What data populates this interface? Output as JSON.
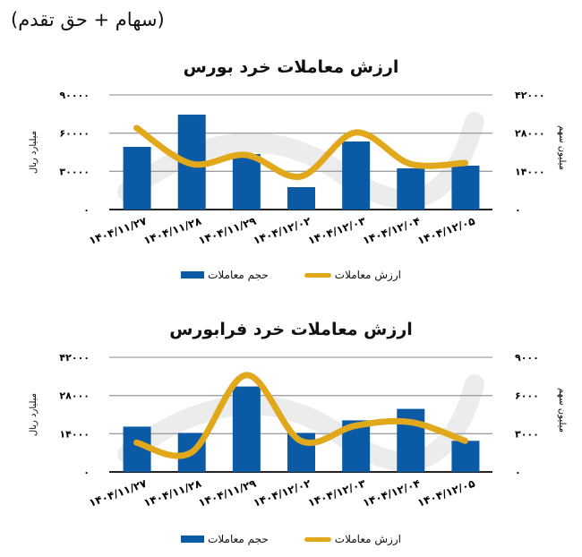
{
  "header": {
    "title": "(سهام + حق تقدم)"
  },
  "colors": {
    "bar": "#0a5aa5",
    "line": "#e2a81c",
    "grid": "#a0a0a0",
    "axis": "#222222",
    "watermark": "#ececec"
  },
  "legend": {
    "line_label": "ارزش معاملات",
    "bar_label": "حجم معاملات"
  },
  "chart_data": [
    {
      "type": "bar+line",
      "title": "ارزش معاملات خرد بورس",
      "categories": [
        "۱۴۰۴/۱۱/۲۷",
        "۱۴۰۴/۱۱/۲۸",
        "۱۴۰۴/۱۱/۲۹",
        "۱۴۰۴/۱۲/۰۲",
        "۱۴۰۴/۱۲/۰۳",
        "۱۴۰۴/۱۲/۰۴",
        "۱۴۰۴/۱۲/۰۵"
      ],
      "series": [
        {
          "name": "حجم معاملات",
          "kind": "bar",
          "axis": "right",
          "values": [
            22970,
            34770,
            20340,
            8200,
            24940,
            15090,
            16080
          ]
        },
        {
          "name": "ارزش معاملات",
          "kind": "line",
          "axis": "left",
          "values": [
            64000,
            35900,
            42900,
            26000,
            60500,
            35900,
            36600
          ]
        }
      ],
      "left_axis": {
        "label": "میلیارد ریال",
        "ticks": [
          "۰",
          "۳۰۰۰۰",
          "۶۰۰۰۰",
          "۹۰۰۰۰"
        ],
        "range": [
          0,
          90000
        ]
      },
      "right_axis": {
        "label": "میلیون سهم",
        "ticks": [
          "۰",
          "۱۴۰۰۰",
          "۲۸۰۰۰",
          "۴۲۰۰۰"
        ],
        "range": [
          0,
          42000
        ]
      },
      "grid": true,
      "legend_position": "bottom"
    },
    {
      "type": "bar+line",
      "title": "ارزش معاملات خرد فرابورس",
      "categories": [
        "۱۴۰۴/۱۱/۲۷",
        "۱۴۰۴/۱۱/۲۸",
        "۱۴۰۴/۱۱/۲۹",
        "۱۴۰۴/۱۲/۰۲",
        "۱۴۰۴/۱۲/۰۳",
        "۱۴۰۴/۱۲/۰۴",
        "۱۴۰۴/۱۲/۰۵"
      ],
      "series": [
        {
          "name": "حجم معاملات",
          "kind": "bar",
          "axis": "left",
          "values": [
            16600,
            14300,
            31300,
            14300,
            18900,
            23100,
            11400
          ]
        },
        {
          "name": "ارزش معاملات",
          "kind": "line",
          "axis": "right",
          "values": [
            2300,
            1530,
            7600,
            2440,
            3630,
            3910,
            2440
          ]
        }
      ],
      "left_axis": {
        "label": "میلیارد ریال",
        "ticks": [
          "۰",
          "۱۴۰۰۰",
          "۲۸۰۰۰",
          "۴۲۰۰۰"
        ],
        "range": [
          0,
          42000
        ]
      },
      "right_axis": {
        "label": "میلیون سهم",
        "ticks": [
          "۰",
          "۳۰۰۰",
          "۶۰۰۰",
          "۹۰۰۰"
        ],
        "range": [
          0,
          9000
        ]
      },
      "grid": true,
      "legend_position": "bottom"
    }
  ]
}
